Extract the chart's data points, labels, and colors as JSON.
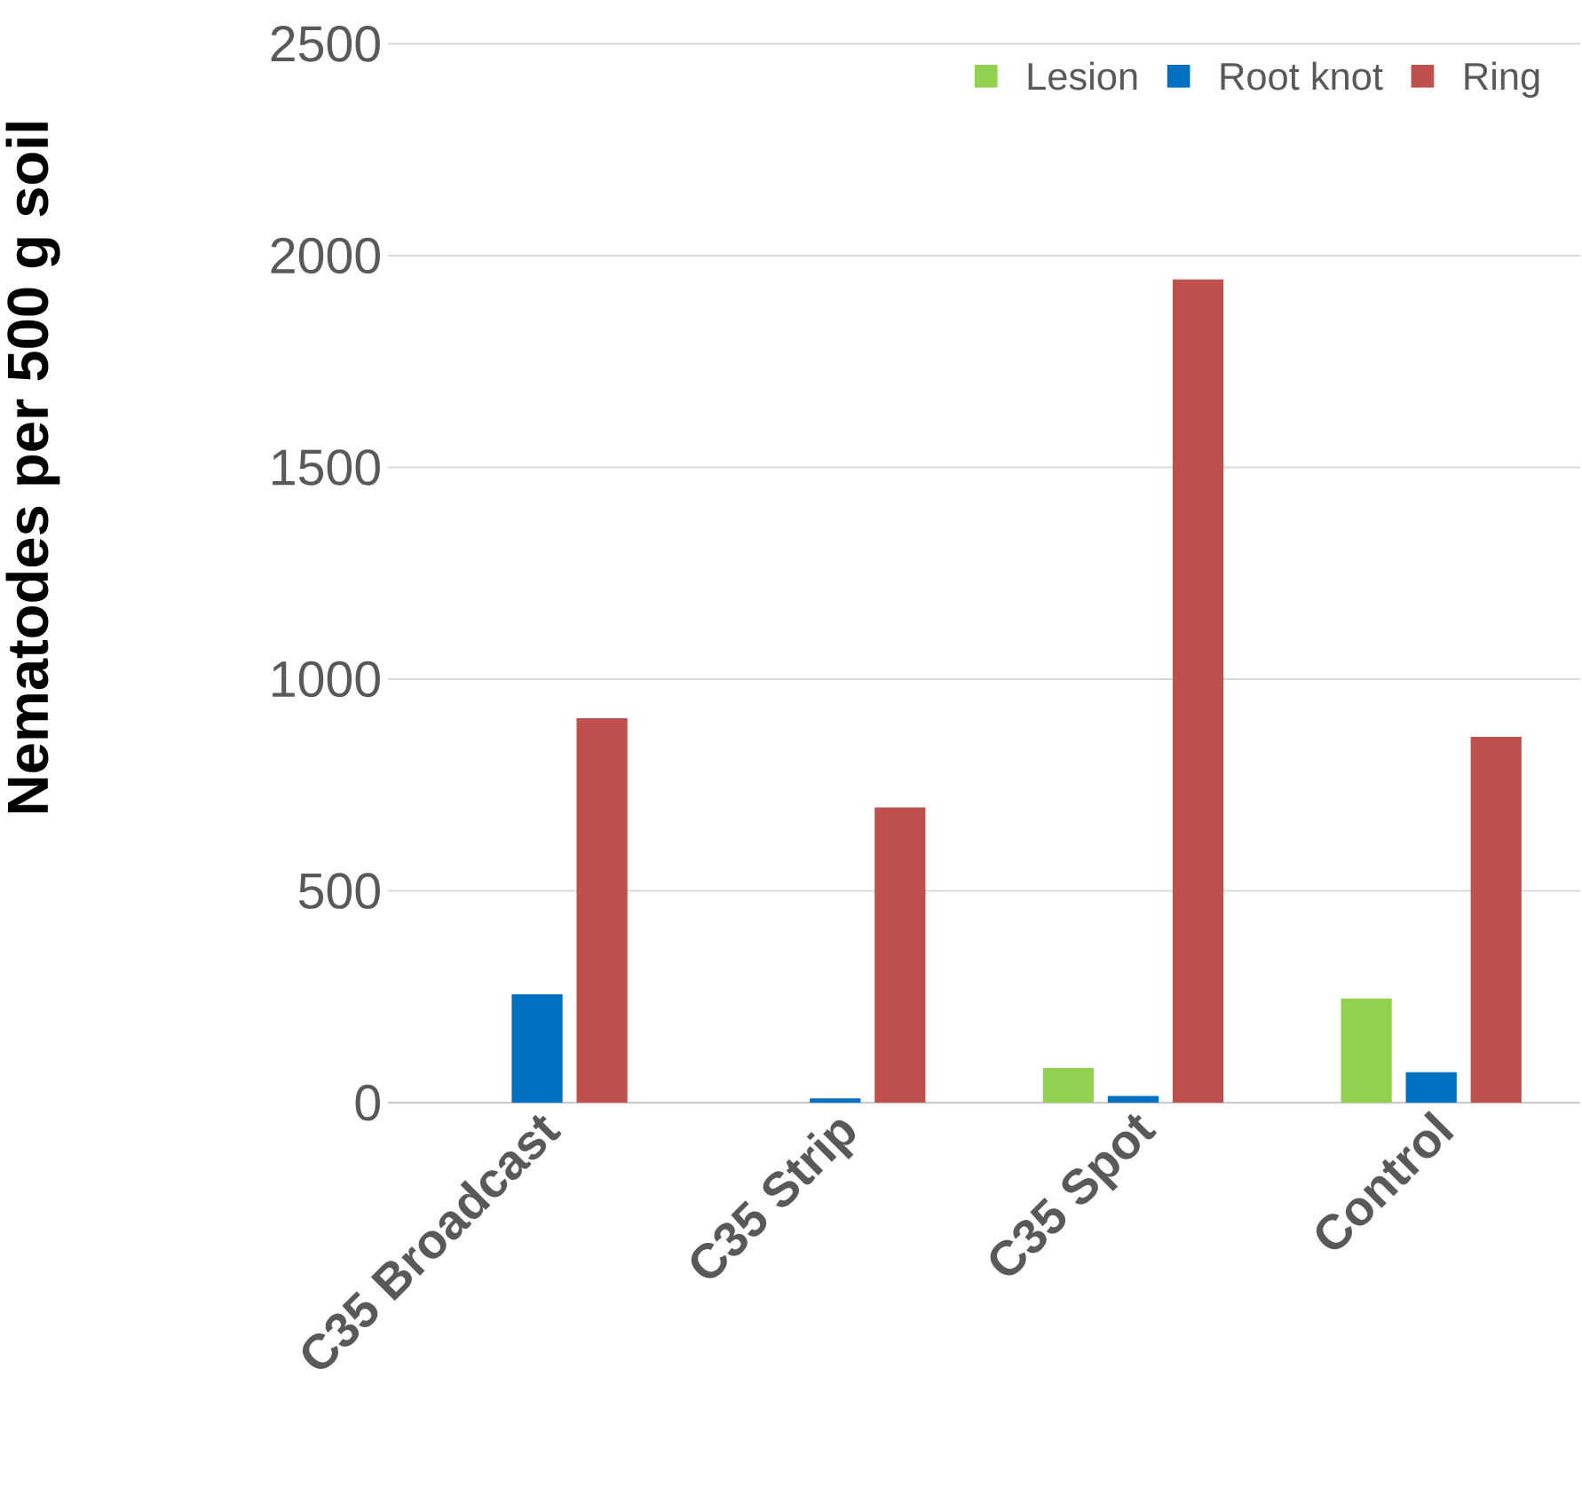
{
  "chart_data": {
    "type": "bar",
    "ylabel": "Nematodes per 500 g soil",
    "categories": [
      "C35 Broadcast",
      "C35 Strip",
      "C35 Spot",
      "Control"
    ],
    "series": [
      {
        "name": "Lesion",
        "color": "#92d050",
        "values": [
          0,
          0,
          82,
          246
        ]
      },
      {
        "name": "Root knot",
        "color": "#0070c0",
        "values": [
          256,
          10,
          16,
          72
        ]
      },
      {
        "name": "Ring",
        "color": "#c0504d",
        "values": [
          908,
          697,
          1944,
          864
        ]
      }
    ],
    "ylim": [
      0,
      2500
    ],
    "yticks": [
      0,
      500,
      1000,
      1500,
      2000,
      2500
    ],
    "grid": "y",
    "legend": "top right"
  }
}
